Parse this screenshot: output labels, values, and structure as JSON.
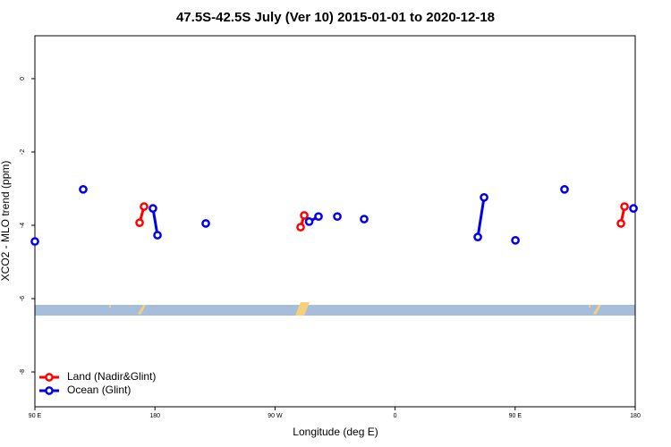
{
  "chart_data": {
    "type": "line",
    "title": "47.5S-42.5S July (Ver 10)   2015-01-01 to 2020-12-18",
    "xlabel": "Longitude (deg E)",
    "ylabel": "XCO2 - MLO trend (ppm)",
    "xlim": [
      90,
      540
    ],
    "ylim": [
      -8.95,
      1.17
    ],
    "xticks": [
      {
        "value": 90,
        "label": "90 E"
      },
      {
        "value": 180,
        "label": "180"
      },
      {
        "value": 270,
        "label": "90 W"
      },
      {
        "value": 360,
        "label": "0"
      },
      {
        "value": 450,
        "label": "90 E"
      },
      {
        "value": 540,
        "label": "180"
      }
    ],
    "yticks": [
      0,
      -2,
      -4,
      -6,
      -8
    ],
    "legend": "bottom-left",
    "series": [
      {
        "name": "Land (Nadir&Glint)",
        "color": "#ff0000",
        "x": [
          168.5,
          171.8,
          null,
          289.2,
          291.9,
          null,
          529.3,
          532
        ],
        "values": [
          -3.93,
          -3.49,
          null,
          -4.05,
          -3.73,
          null,
          -3.95,
          -3.49
        ]
      },
      {
        "name": "Ocean (Glint)",
        "color": "#0000ee",
        "x": [
          90,
          null,
          126.2,
          null,
          178.5,
          181.9,
          null,
          218.1,
          null,
          295.6,
          302.6,
          null,
          316.7,
          null,
          336.8,
          null,
          422,
          426.7,
          null,
          450.2,
          null,
          487,
          null,
          538.7
        ],
        "values": [
          -4.44,
          null,
          -3.02,
          null,
          -3.54,
          -4.27,
          null,
          -3.95,
          null,
          -3.9,
          -3.76,
          null,
          -3.76,
          null,
          -3.83,
          null,
          -4.32,
          -3.24,
          null,
          -4.41,
          null,
          -3.02,
          null,
          -3.54
        ]
      }
    ]
  }
}
